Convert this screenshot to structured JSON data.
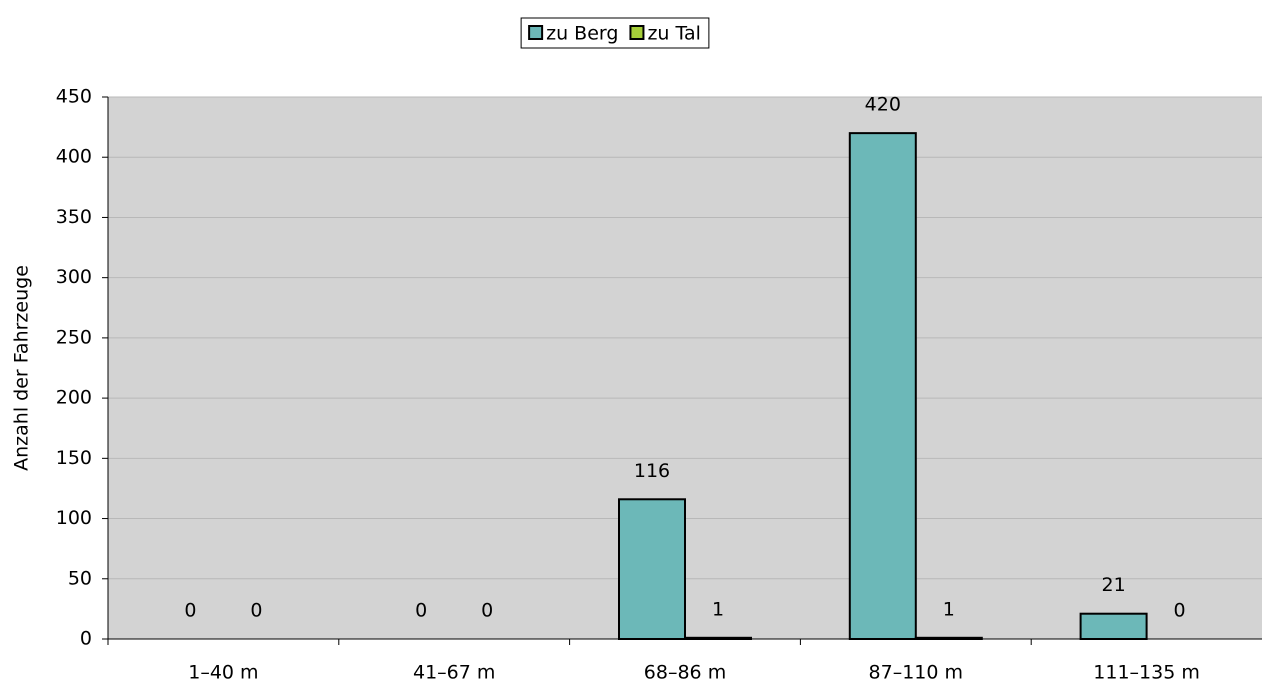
{
  "chart_data": {
    "type": "bar",
    "categories": [
      "1–40 m",
      "41–67 m",
      "68–86 m",
      "87–110 m",
      "111–135 m"
    ],
    "series": [
      {
        "name": "zu Berg",
        "color": "#6cb8b8",
        "values": [
          0,
          0,
          116,
          420,
          21
        ]
      },
      {
        "name": "zu Tal",
        "color": "#a6ce39",
        "values": [
          0,
          0,
          1,
          1,
          0
        ]
      }
    ],
    "y_label": "Anzahl der Fahrzeuge",
    "ylim": [
      0,
      450
    ],
    "yticks": [
      0,
      50,
      100,
      150,
      200,
      250,
      300,
      350,
      400,
      450
    ],
    "grid": true,
    "legend": "top"
  }
}
